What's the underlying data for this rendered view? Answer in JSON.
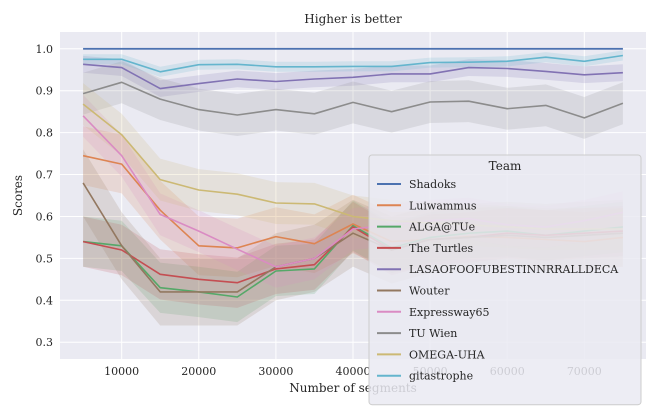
{
  "chart_data": {
    "type": "line",
    "title": "Higher is better",
    "xlabel": "Number of segments",
    "ylabel": "Scores",
    "xlim": [
      2000,
      78000
    ],
    "ylim": [
      0.26,
      1.04
    ],
    "xticks": [
      10000,
      20000,
      30000,
      40000,
      50000,
      60000,
      70000
    ],
    "xtick_labels": [
      "10000",
      "20000",
      "30000",
      "40000",
      "50000",
      "60000",
      "70000"
    ],
    "yticks": [
      0.3,
      0.4,
      0.5,
      0.6,
      0.7,
      0.8,
      0.9,
      1.0
    ],
    "ytick_labels": [
      "0.3",
      "0.4",
      "0.5",
      "0.6",
      "0.7",
      "0.8",
      "0.9",
      "1.0"
    ],
    "grid": true,
    "legend_title": "Team",
    "legend_position": "lower-right",
    "x": [
      5000,
      10000,
      15000,
      20000,
      25000,
      30000,
      35000,
      40000,
      45000,
      50000,
      55000,
      60000,
      65000,
      70000,
      75000
    ],
    "series": [
      {
        "name": "Shadoks",
        "color": "#4c72b0",
        "values": [
          1.0,
          1.0,
          1.0,
          1.0,
          1.0,
          1.0,
          1.0,
          1.0,
          1.0,
          1.0,
          1.0,
          1.0,
          1.0,
          1.0,
          1.0
        ],
        "band": 0.003
      },
      {
        "name": "Luiwammus",
        "color": "#dd8452",
        "values": [
          0.745,
          0.725,
          0.615,
          0.53,
          0.525,
          0.552,
          0.535,
          0.582,
          0.54,
          0.545,
          0.552,
          0.55,
          0.545,
          0.54,
          0.55
        ],
        "band": 0.07
      },
      {
        "name": "ALGA@TUe",
        "color": "#55a868",
        "values": [
          0.54,
          0.53,
          0.43,
          0.42,
          0.408,
          0.47,
          0.475,
          0.578,
          0.525,
          0.55,
          0.56,
          0.565,
          0.555,
          0.565,
          0.575
        ],
        "band": 0.06
      },
      {
        "name": "The Turtles",
        "color": "#c44e52",
        "values": [
          0.54,
          0.52,
          0.462,
          0.45,
          0.442,
          0.475,
          0.485,
          0.575,
          0.52,
          0.545,
          0.55,
          0.56,
          0.555,
          0.56,
          0.565
        ],
        "band": 0.06
      },
      {
        "name": "LASAOFOOFUBESTINNRRALLDECA",
        "color": "#8172b3",
        "values": [
          0.963,
          0.955,
          0.905,
          0.917,
          0.928,
          0.922,
          0.928,
          0.932,
          0.94,
          0.94,
          0.955,
          0.953,
          0.946,
          0.938,
          0.943
        ],
        "band": 0.02
      },
      {
        "name": "Wouter",
        "color": "#937860",
        "values": [
          0.68,
          0.53,
          0.42,
          0.42,
          0.42,
          0.48,
          0.5,
          0.56,
          0.52,
          0.545,
          0.55,
          0.555,
          0.55,
          0.555,
          0.56
        ],
        "band": 0.08
      },
      {
        "name": "Expressway65",
        "color": "#da8bc3",
        "values": [
          0.84,
          0.745,
          0.605,
          0.565,
          0.522,
          0.48,
          0.5,
          0.57,
          0.58,
          0.59,
          0.595,
          0.58,
          0.575,
          0.59,
          0.61
        ],
        "band": 0.05
      },
      {
        "name": "TU Wien",
        "color": "#8c8c8c",
        "values": [
          0.893,
          0.92,
          0.88,
          0.855,
          0.842,
          0.855,
          0.845,
          0.872,
          0.85,
          0.873,
          0.875,
          0.857,
          0.865,
          0.835,
          0.87
        ],
        "band": 0.05
      },
      {
        "name": "OMEGA-UHA",
        "color": "#ccb974",
        "values": [
          0.868,
          0.795,
          0.688,
          0.663,
          0.653,
          0.632,
          0.63,
          0.6,
          0.59,
          0.585,
          0.58,
          0.575,
          0.57,
          0.57,
          0.57
        ],
        "band": 0.05
      },
      {
        "name": "gitastrophe",
        "color": "#64b5cd",
        "values": [
          0.975,
          0.975,
          0.945,
          0.962,
          0.963,
          0.957,
          0.957,
          0.958,
          0.958,
          0.967,
          0.968,
          0.97,
          0.98,
          0.97,
          0.984
        ],
        "band": 0.012
      }
    ]
  }
}
